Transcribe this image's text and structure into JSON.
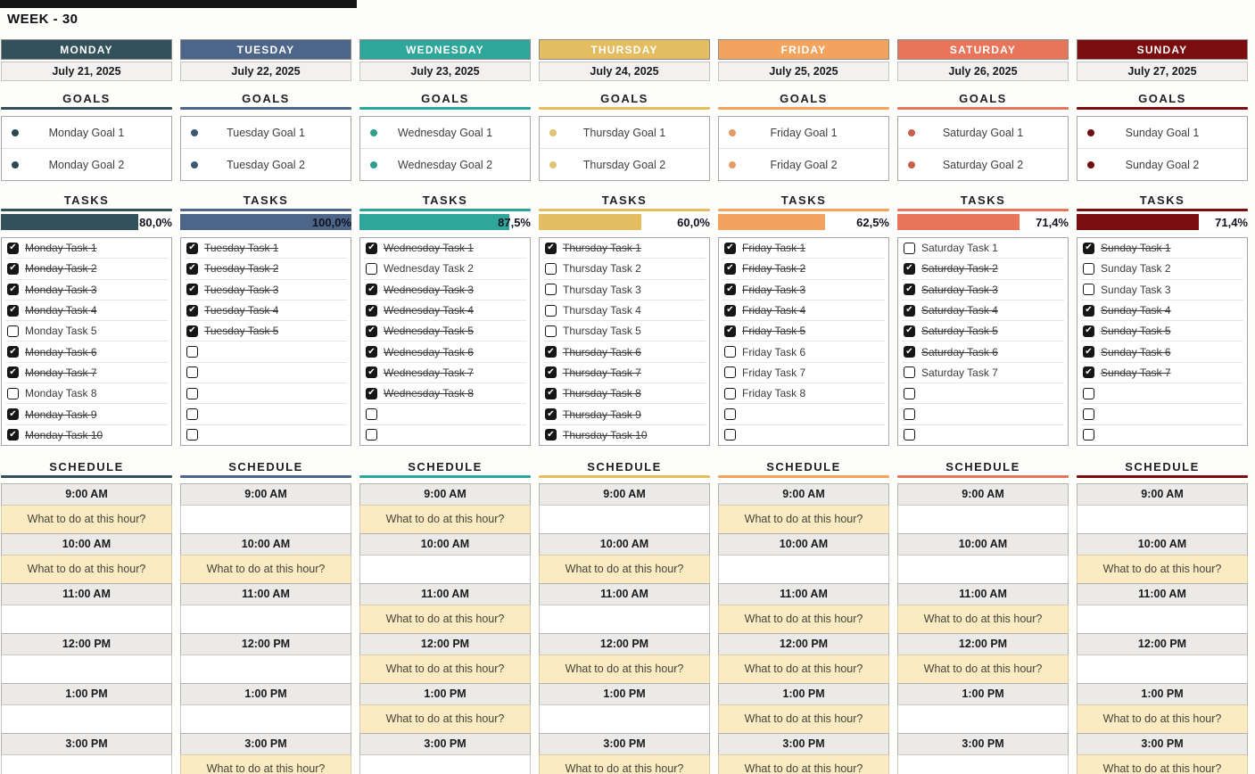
{
  "title": "WEEK - 30",
  "icons": {
    "checkmark": "✔"
  },
  "section_labels": {
    "goals": "GOALS",
    "tasks": "TASKS",
    "schedule": "SCHEDULE"
  },
  "schedule_placeholder": "What to do at this hour?",
  "days": [
    {
      "name": "MONDAY",
      "date": "July 21, 2025",
      "color": "#33515A",
      "bullet_color": "#2C4851",
      "goals": [
        "Monday Goal 1",
        "Monday Goal 2"
      ],
      "progress_label": "80,0%",
      "progress_pct": 80,
      "tasks": [
        {
          "label": "Monday Task 1",
          "checked": true
        },
        {
          "label": "Monday Task 2",
          "checked": true
        },
        {
          "label": "Monday Task 3",
          "checked": true
        },
        {
          "label": "Monday Task 4",
          "checked": true
        },
        {
          "label": "Monday Task 5",
          "checked": false
        },
        {
          "label": "Monday Task 6",
          "checked": true
        },
        {
          "label": "Monday Task 7",
          "checked": true
        },
        {
          "label": "Monday Task 8",
          "checked": false
        },
        {
          "label": "Monday Task 9",
          "checked": true
        },
        {
          "label": "Monday Task 10",
          "checked": true
        }
      ],
      "schedule": [
        {
          "time": "9:00 AM",
          "entry": "What to do at this hour?"
        },
        {
          "time": "10:00 AM",
          "entry": "What to do at this hour?"
        },
        {
          "time": "11:00 AM",
          "entry": ""
        },
        {
          "time": "12:00 PM",
          "entry": ""
        },
        {
          "time": "1:00 PM",
          "entry": ""
        },
        {
          "time": "3:00 PM",
          "entry": ""
        }
      ]
    },
    {
      "name": "TUESDAY",
      "date": "July 22, 2025",
      "color": "#4C6588",
      "bullet_color": "#3D5875",
      "goals": [
        "Tuesday Goal 1",
        "Tuesday Goal 2"
      ],
      "progress_label": "100,0%",
      "progress_pct": 100,
      "tasks": [
        {
          "label": "Tuesday Task 1",
          "checked": true
        },
        {
          "label": "Tuesday Task 2",
          "checked": true
        },
        {
          "label": "Tuesday Task 3",
          "checked": true
        },
        {
          "label": "Tuesday Task 4",
          "checked": true
        },
        {
          "label": "Tuesday Task 5",
          "checked": true
        },
        {
          "label": "",
          "checked": false
        },
        {
          "label": "",
          "checked": false
        },
        {
          "label": "",
          "checked": false
        },
        {
          "label": "",
          "checked": false
        },
        {
          "label": "",
          "checked": false
        }
      ],
      "schedule": [
        {
          "time": "9:00 AM",
          "entry": ""
        },
        {
          "time": "10:00 AM",
          "entry": "What to do at this hour?"
        },
        {
          "time": "11:00 AM",
          "entry": ""
        },
        {
          "time": "12:00 PM",
          "entry": ""
        },
        {
          "time": "1:00 PM",
          "entry": ""
        },
        {
          "time": "3:00 PM",
          "entry": "What to do at this hour?"
        }
      ]
    },
    {
      "name": "WEDNESDAY",
      "date": "July 23, 2025",
      "color": "#2EA79A",
      "bullet_color": "#2E9E8E",
      "goals": [
        "Wednesday Goal 1",
        "Wednesday Goal 2"
      ],
      "progress_label": "87,5%",
      "progress_pct": 87.5,
      "tasks": [
        {
          "label": "Wednesday Task 1",
          "checked": true
        },
        {
          "label": "Wednesday Task 2",
          "checked": false
        },
        {
          "label": "Wednesday Task 3",
          "checked": true
        },
        {
          "label": "Wednesday Task 4",
          "checked": true
        },
        {
          "label": "Wednesday Task 5",
          "checked": true
        },
        {
          "label": "Wednesday Task 6",
          "checked": true
        },
        {
          "label": "Wednesday Task 7",
          "checked": true
        },
        {
          "label": "Wednesday Task 8",
          "checked": true
        },
        {
          "label": "",
          "checked": false
        },
        {
          "label": "",
          "checked": false
        }
      ],
      "schedule": [
        {
          "time": "9:00 AM",
          "entry": "What to do at this hour?"
        },
        {
          "time": "10:00 AM",
          "entry": ""
        },
        {
          "time": "11:00 AM",
          "entry": "What to do at this hour?"
        },
        {
          "time": "12:00 PM",
          "entry": "What to do at this hour?"
        },
        {
          "time": "1:00 PM",
          "entry": "What to do at this hour?"
        },
        {
          "time": "3:00 PM",
          "entry": ""
        }
      ]
    },
    {
      "name": "THURSDAY",
      "date": "July 24, 2025",
      "color": "#E3BD5F",
      "bullet_color": "#E2C276",
      "goals": [
        "Thursday Goal 1",
        "Thursday Goal 2"
      ],
      "progress_label": "60,0%",
      "progress_pct": 60,
      "tasks": [
        {
          "label": "Thursday Task 1",
          "checked": true
        },
        {
          "label": "Thursday Task 2",
          "checked": false
        },
        {
          "label": "Thursday Task 3",
          "checked": false
        },
        {
          "label": "Thursday Task 4",
          "checked": false
        },
        {
          "label": "Thursday Task 5",
          "checked": false
        },
        {
          "label": "Thursday Task 6",
          "checked": true
        },
        {
          "label": "Thursday Task 7",
          "checked": true
        },
        {
          "label": "Thursday Task 8",
          "checked": true
        },
        {
          "label": "Thursday Task 9",
          "checked": true
        },
        {
          "label": "Thursday Task 10",
          "checked": true
        }
      ],
      "schedule": [
        {
          "time": "9:00 AM",
          "entry": ""
        },
        {
          "time": "10:00 AM",
          "entry": "What to do at this hour?"
        },
        {
          "time": "11:00 AM",
          "entry": ""
        },
        {
          "time": "12:00 PM",
          "entry": "What to do at this hour?"
        },
        {
          "time": "1:00 PM",
          "entry": ""
        },
        {
          "time": "3:00 PM",
          "entry": "What to do at this hour?"
        }
      ]
    },
    {
      "name": "FRIDAY",
      "date": "July 25, 2025",
      "color": "#F2A45F",
      "bullet_color": "#E59A64",
      "goals": [
        "Friday Goal 1",
        "Friday Goal 2"
      ],
      "progress_label": "62,5%",
      "progress_pct": 62.5,
      "tasks": [
        {
          "label": "Friday Task 1",
          "checked": true
        },
        {
          "label": "Friday Task 2",
          "checked": true
        },
        {
          "label": "Friday Task 3",
          "checked": true
        },
        {
          "label": "Friday Task 4",
          "checked": true
        },
        {
          "label": "Friday Task 5",
          "checked": true
        },
        {
          "label": "Friday Task 6",
          "checked": false
        },
        {
          "label": "Friday Task 7",
          "checked": false
        },
        {
          "label": "Friday Task 8",
          "checked": false
        },
        {
          "label": "",
          "checked": false
        },
        {
          "label": "",
          "checked": false
        }
      ],
      "schedule": [
        {
          "time": "9:00 AM",
          "entry": "What to do at this hour?"
        },
        {
          "time": "10:00 AM",
          "entry": ""
        },
        {
          "time": "11:00 AM",
          "entry": "What to do at this hour?"
        },
        {
          "time": "12:00 PM",
          "entry": "What to do at this hour?"
        },
        {
          "time": "1:00 PM",
          "entry": "What to do at this hour?"
        },
        {
          "time": "3:00 PM",
          "entry": "What to do at this hour?"
        }
      ]
    },
    {
      "name": "SATURDAY",
      "date": "July 26, 2025",
      "color": "#E87459",
      "bullet_color": "#C95F4B",
      "goals": [
        "Saturday Goal 1",
        "Saturday Goal 2"
      ],
      "progress_label": "71,4%",
      "progress_pct": 71.4,
      "tasks": [
        {
          "label": "Saturday Task 1",
          "checked": false
        },
        {
          "label": "Saturday Task 2",
          "checked": true
        },
        {
          "label": "Saturday Task 3",
          "checked": true
        },
        {
          "label": "Saturday Task 4",
          "checked": true
        },
        {
          "label": "Saturday Task 5",
          "checked": true
        },
        {
          "label": "Saturday Task 6",
          "checked": true
        },
        {
          "label": "Saturday Task 7",
          "checked": false
        },
        {
          "label": "",
          "checked": false
        },
        {
          "label": "",
          "checked": false
        },
        {
          "label": "",
          "checked": false
        }
      ],
      "schedule": [
        {
          "time": "9:00 AM",
          "entry": ""
        },
        {
          "time": "10:00 AM",
          "entry": ""
        },
        {
          "time": "11:00 AM",
          "entry": "What to do at this hour?"
        },
        {
          "time": "12:00 PM",
          "entry": "What to do at this hour?"
        },
        {
          "time": "1:00 PM",
          "entry": ""
        },
        {
          "time": "3:00 PM",
          "entry": ""
        }
      ]
    },
    {
      "name": "SUNDAY",
      "date": "July 27, 2025",
      "color": "#7C0D0F",
      "bullet_color": "#6E1012",
      "goals": [
        "Sunday Goal 1",
        "Sunday Goal 2"
      ],
      "progress_label": "71,4%",
      "progress_pct": 71.4,
      "tasks": [
        {
          "label": "Sunday Task 1",
          "checked": true
        },
        {
          "label": "Sunday Task 2",
          "checked": false
        },
        {
          "label": "Sunday Task 3",
          "checked": false
        },
        {
          "label": "Sunday Task 4",
          "checked": true
        },
        {
          "label": "Sunday Task 5",
          "checked": true
        },
        {
          "label": "Sunday Task 6",
          "checked": true
        },
        {
          "label": "Sunday Task 7",
          "checked": true
        },
        {
          "label": "",
          "checked": false
        },
        {
          "label": "",
          "checked": false
        },
        {
          "label": "",
          "checked": false
        }
      ],
      "schedule": [
        {
          "time": "9:00 AM",
          "entry": ""
        },
        {
          "time": "10:00 AM",
          "entry": "What to do at this hour?"
        },
        {
          "time": "11:00 AM",
          "entry": ""
        },
        {
          "time": "12:00 PM",
          "entry": ""
        },
        {
          "time": "1:00 PM",
          "entry": "What to do at this hour?"
        },
        {
          "time": "3:00 PM",
          "entry": "What to do at this hour?"
        }
      ]
    }
  ]
}
